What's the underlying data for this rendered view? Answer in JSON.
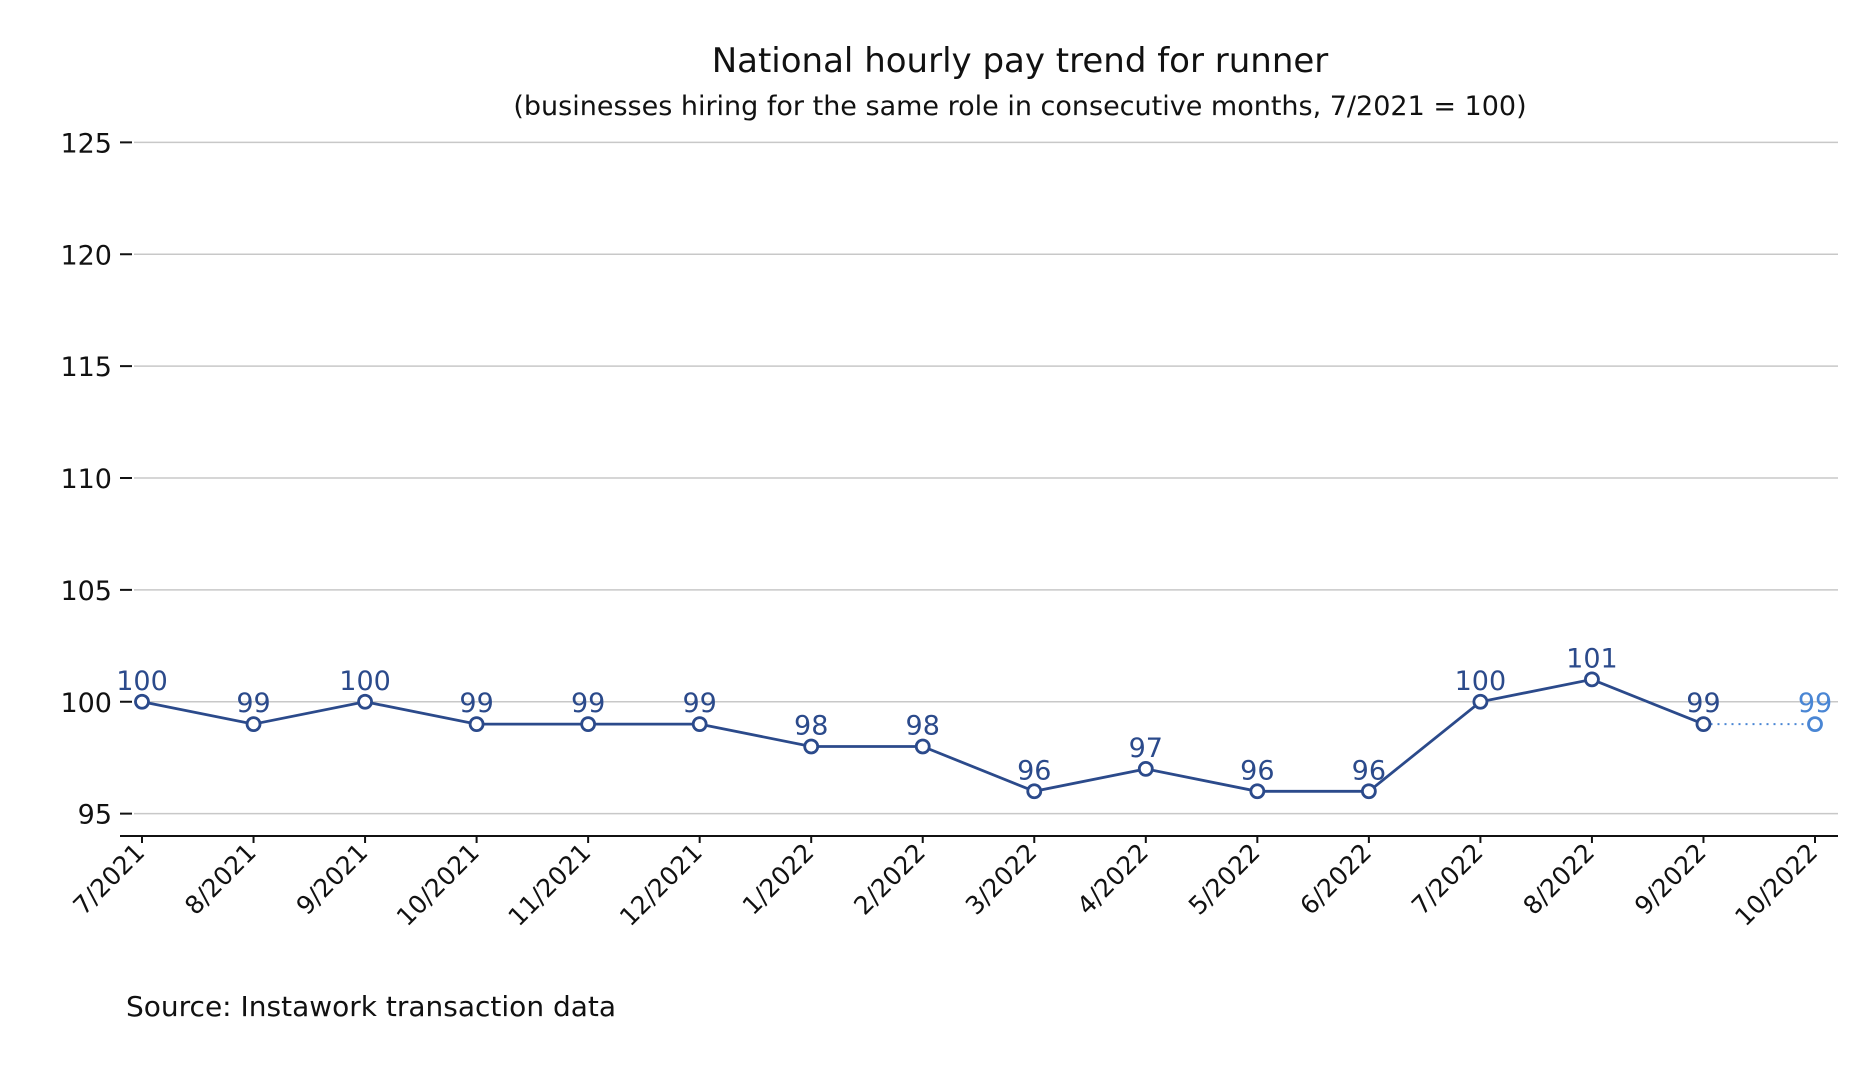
{
  "chart_data": {
    "type": "line",
    "title": "National hourly pay trend for runner",
    "subtitle": "(businesses hiring for the same role in consecutive months, 7/2021 = 100)",
    "xlabel": "",
    "ylabel": "",
    "categories": [
      "7/2021",
      "8/2021",
      "9/2021",
      "10/2021",
      "11/2021",
      "12/2021",
      "1/2022",
      "2/2022",
      "3/2022",
      "4/2022",
      "5/2022",
      "6/2022",
      "7/2022",
      "8/2022",
      "9/2022",
      "10/2022"
    ],
    "series": [
      {
        "values": [
          100,
          99,
          100,
          99,
          99,
          99,
          98,
          98,
          96,
          97,
          96,
          96,
          100,
          101,
          99,
          null
        ],
        "style": "solid",
        "color": "#2b4a8b"
      },
      {
        "values": [
          null,
          null,
          null,
          null,
          null,
          null,
          null,
          null,
          null,
          null,
          null,
          null,
          null,
          null,
          99,
          99
        ],
        "style": "dotted",
        "color": "#4a86d4"
      }
    ],
    "data_labels": [
      "100",
      "99",
      "100",
      "99",
      "99",
      "99",
      "98",
      "98",
      "96",
      "97",
      "96",
      "96",
      "100",
      "101",
      "99",
      "99"
    ],
    "ylim": [
      94,
      126
    ],
    "yticks": [
      95,
      100,
      105,
      110,
      115,
      120,
      125
    ],
    "grid": true,
    "legend": "none",
    "source": "Source: Instawork transaction data"
  }
}
